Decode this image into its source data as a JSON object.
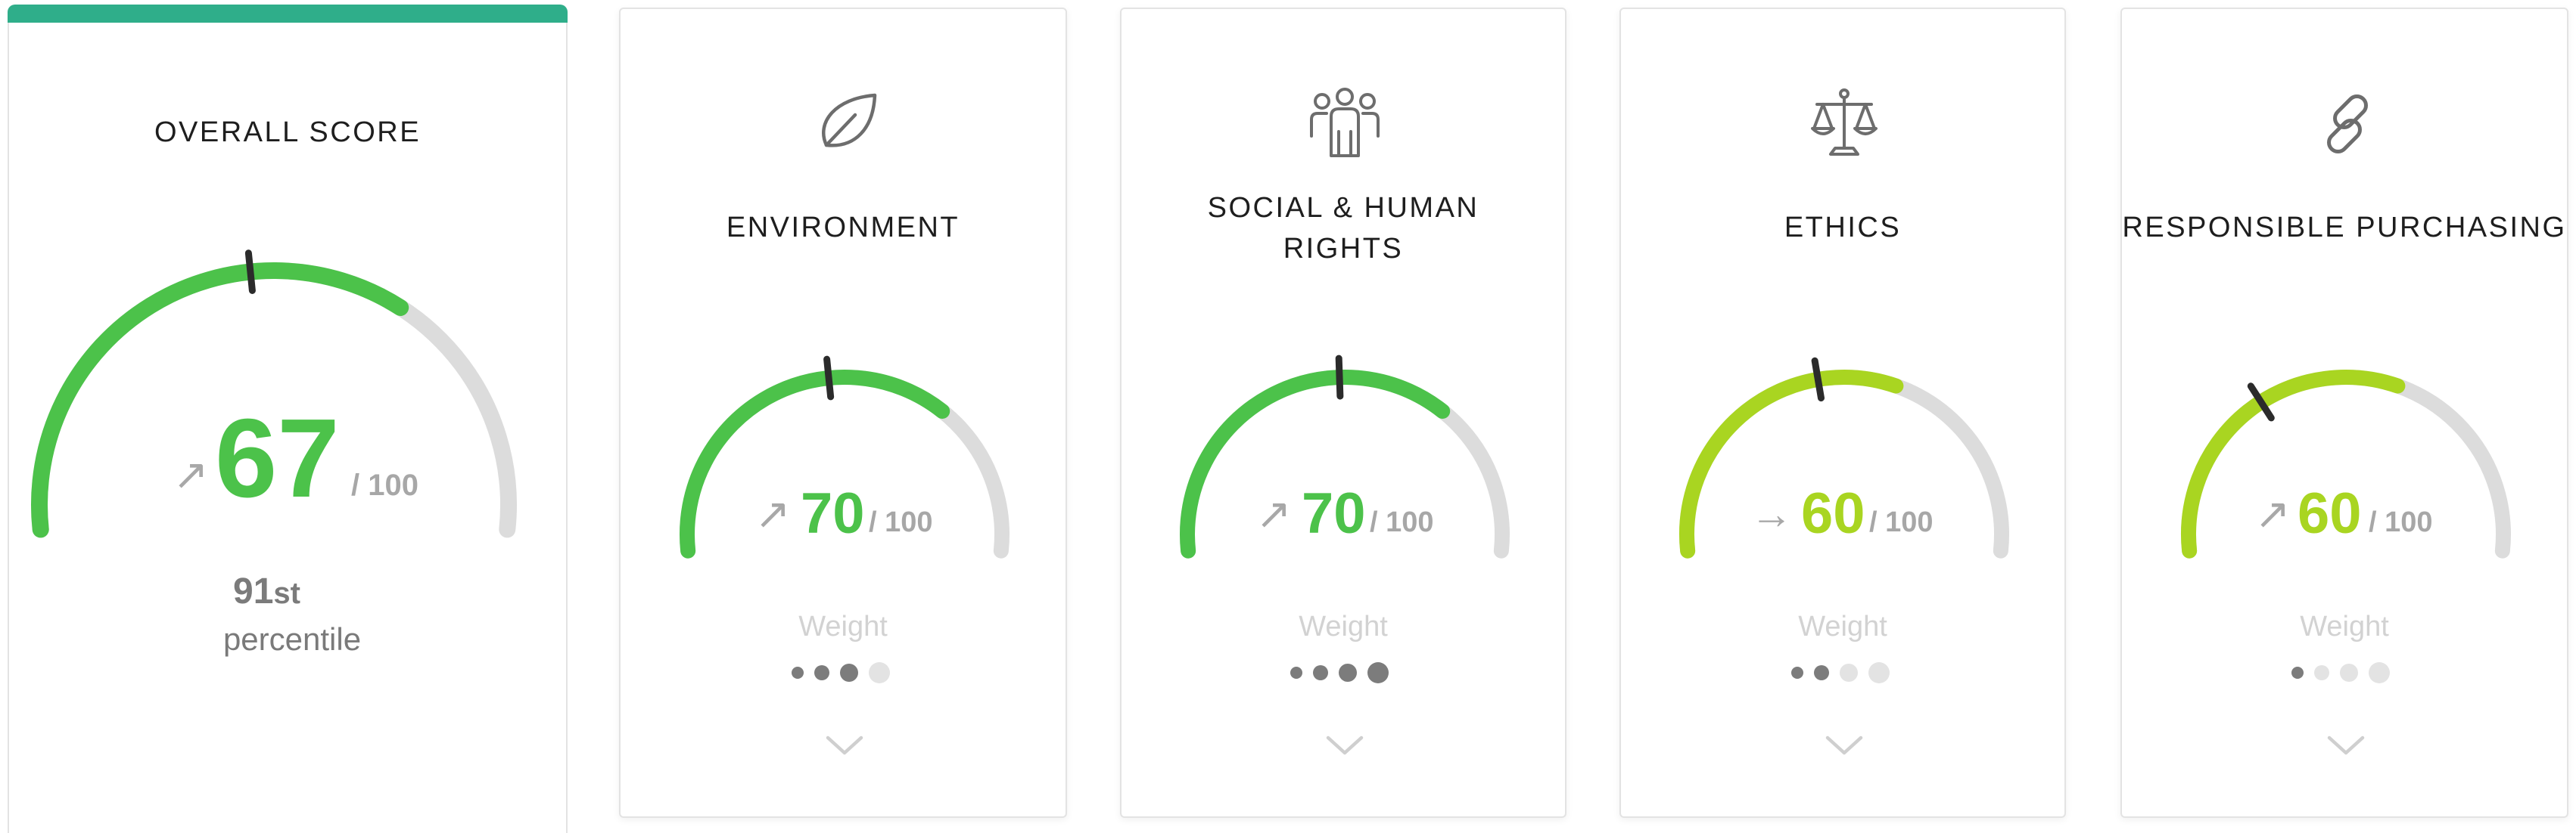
{
  "overall": {
    "title": "OVERALL SCORE",
    "trend_icon": "arrow-up-right-icon",
    "score": "67",
    "out_of": "/ 100",
    "score_value": 67,
    "previous_value": 47,
    "percentile_rank": "91",
    "percentile_suffix": "st",
    "percentile_label": "percentile",
    "color": "#4cc24a",
    "accent_color": "#2fae8a"
  },
  "categories": [
    {
      "title_lines": [
        "ENVIRONMENT"
      ],
      "icon": "leaf-icon",
      "trend_icon": "arrow-up-right-icon",
      "score": "70",
      "out_of": "/ 100",
      "score_value": 70,
      "previous_value": 47,
      "weight_label": "Weight",
      "weight": 3,
      "weight_max": 4,
      "color": "#4cc24a"
    },
    {
      "title_lines": [
        "SOCIAL & HUMAN",
        "RIGHTS"
      ],
      "icon": "people-group-icon",
      "trend_icon": "arrow-up-right-icon",
      "score": "70",
      "out_of": "/ 100",
      "score_value": 70,
      "previous_value": 49,
      "weight_label": "Weight",
      "weight": 4,
      "weight_max": 4,
      "color": "#4cc24a"
    },
    {
      "title_lines": [
        "ETHICS"
      ],
      "icon": "scales-icon",
      "trend_icon": "arrow-right-icon",
      "score": "60",
      "out_of": "/ 100",
      "score_value": 60,
      "previous_value": 45,
      "weight_label": "Weight",
      "weight": 2,
      "weight_max": 4,
      "color": "#a9d521"
    },
    {
      "title_lines": [
        "RESPONSIBLE PURCHASING"
      ],
      "icon": "chain-link-icon",
      "trend_icon": "arrow-up-right-icon",
      "score": "60",
      "out_of": "/ 100",
      "score_value": 60,
      "previous_value": 33,
      "weight_label": "Weight",
      "weight": 1,
      "weight_max": 4,
      "color": "#a9d521"
    }
  ]
}
